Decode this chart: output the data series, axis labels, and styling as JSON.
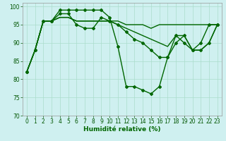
{
  "xlabel": "Humidité relative (%)",
  "background_color": "#cff0f0",
  "grid_color": "#aaddcc",
  "line_color": "#006600",
  "xlim": [
    -0.5,
    23.5
  ],
  "ylim": [
    70,
    101
  ],
  "yticks": [
    70,
    75,
    80,
    85,
    90,
    95,
    100
  ],
  "xticks": [
    0,
    1,
    2,
    3,
    4,
    5,
    6,
    7,
    8,
    9,
    10,
    11,
    12,
    13,
    14,
    15,
    16,
    17,
    18,
    19,
    20,
    21,
    22,
    23
  ],
  "series": [
    {
      "values": [
        82,
        88,
        96,
        96,
        99,
        99,
        99,
        99,
        99,
        99,
        97,
        89,
        78,
        78,
        77,
        76,
        78,
        86,
        90,
        92,
        88,
        90,
        95,
        95
      ],
      "marker": "D",
      "markersize": 2.0,
      "linewidth": 1.0
    },
    {
      "values": [
        82,
        88,
        96,
        96,
        98,
        98,
        95,
        94,
        94,
        97,
        96,
        95,
        93,
        91,
        90,
        88,
        86,
        86,
        92,
        90,
        88,
        88,
        90,
        95
      ],
      "marker": "D",
      "markersize": 2.0,
      "linewidth": 1.0
    },
    {
      "values": [
        82,
        88,
        96,
        96,
        97,
        97,
        96,
        96,
        96,
        96,
        96,
        95,
        94,
        93,
        92,
        91,
        90,
        89,
        92,
        92,
        88,
        88,
        90,
        95
      ],
      "marker": null,
      "markersize": 0,
      "linewidth": 1.0
    },
    {
      "values": [
        82,
        88,
        96,
        96,
        97,
        97,
        96,
        96,
        96,
        96,
        96,
        96,
        95,
        95,
        95,
        94,
        95,
        95,
        95,
        95,
        95,
        95,
        95,
        95
      ],
      "marker": null,
      "markersize": 0,
      "linewidth": 1.0
    }
  ],
  "xlabel_fontsize": 6.5,
  "tick_fontsize": 5.5,
  "tick_color": "#005500"
}
